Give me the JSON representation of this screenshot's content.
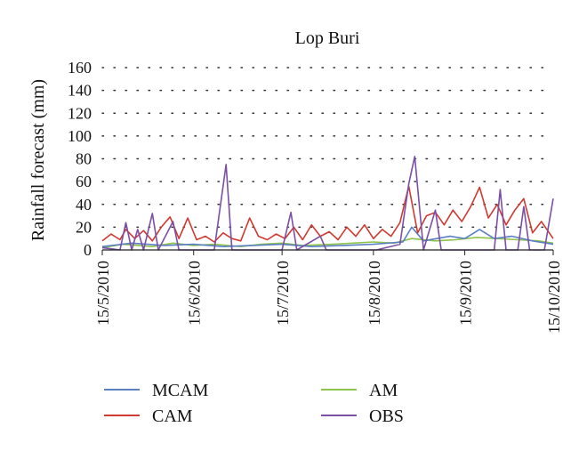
{
  "chart_data": {
    "type": "line",
    "title": "Lop Buri",
    "xlabel": "",
    "ylabel": "Rainfall forecast (mm)",
    "ylim": [
      0,
      160
    ],
    "yticks": [
      0,
      20,
      40,
      60,
      80,
      100,
      120,
      140,
      160
    ],
    "xlim": [
      "2010-05-15",
      "2010-10-15"
    ],
    "xtick_labels": [
      "15/5/2010",
      "15/6/2010",
      "15/7/2010",
      "15/8/2010",
      "15/9/2010",
      "15/10/2010"
    ],
    "xtick_dates": [
      "2010-05-15",
      "2010-06-15",
      "2010-07-15",
      "2010-08-15",
      "2010-09-15",
      "2010-10-15"
    ],
    "grid": "horizontal-dotted",
    "legend_position": "bottom",
    "series": [
      {
        "name": "MCAM",
        "color": "#5b7fc4",
        "points": [
          [
            "2010-05-15",
            3
          ],
          [
            "2010-05-25",
            6
          ],
          [
            "2010-06-05",
            4
          ],
          [
            "2010-06-15",
            5
          ],
          [
            "2010-06-25",
            3
          ],
          [
            "2010-07-05",
            4
          ],
          [
            "2010-07-15",
            5
          ],
          [
            "2010-07-25",
            3
          ],
          [
            "2010-08-05",
            4
          ],
          [
            "2010-08-15",
            5
          ],
          [
            "2010-08-25",
            7
          ],
          [
            "2010-08-28",
            20
          ],
          [
            "2010-09-01",
            8
          ],
          [
            "2010-09-10",
            12
          ],
          [
            "2010-09-15",
            10
          ],
          [
            "2010-09-20",
            18
          ],
          [
            "2010-09-25",
            10
          ],
          [
            "2010-10-01",
            12
          ],
          [
            "2010-10-08",
            8
          ],
          [
            "2010-10-15",
            5
          ]
        ]
      },
      {
        "name": "CAM",
        "color": "#d03a32",
        "points": [
          [
            "2010-05-15",
            8
          ],
          [
            "2010-05-18",
            14
          ],
          [
            "2010-05-21",
            9
          ],
          [
            "2010-05-23",
            18
          ],
          [
            "2010-05-26",
            10
          ],
          [
            "2010-05-29",
            17
          ],
          [
            "2010-06-01",
            8
          ],
          [
            "2010-06-04",
            20
          ],
          [
            "2010-06-07",
            29
          ],
          [
            "2010-06-10",
            10
          ],
          [
            "2010-06-13",
            28
          ],
          [
            "2010-06-16",
            9
          ],
          [
            "2010-06-19",
            12
          ],
          [
            "2010-06-22",
            7
          ],
          [
            "2010-06-25",
            15
          ],
          [
            "2010-06-28",
            10
          ],
          [
            "2010-07-01",
            8
          ],
          [
            "2010-07-04",
            28
          ],
          [
            "2010-07-07",
            12
          ],
          [
            "2010-07-10",
            9
          ],
          [
            "2010-07-13",
            14
          ],
          [
            "2010-07-16",
            10
          ],
          [
            "2010-07-19",
            20
          ],
          [
            "2010-07-22",
            9
          ],
          [
            "2010-07-25",
            22
          ],
          [
            "2010-07-28",
            12
          ],
          [
            "2010-07-31",
            16
          ],
          [
            "2010-08-03",
            9
          ],
          [
            "2010-08-06",
            20
          ],
          [
            "2010-08-09",
            12
          ],
          [
            "2010-08-12",
            22
          ],
          [
            "2010-08-15",
            10
          ],
          [
            "2010-08-18",
            18
          ],
          [
            "2010-08-21",
            12
          ],
          [
            "2010-08-24",
            24
          ],
          [
            "2010-08-27",
            56
          ],
          [
            "2010-08-30",
            15
          ],
          [
            "2010-09-02",
            30
          ],
          [
            "2010-09-05",
            33
          ],
          [
            "2010-09-08",
            22
          ],
          [
            "2010-09-11",
            35
          ],
          [
            "2010-09-14",
            25
          ],
          [
            "2010-09-17",
            38
          ],
          [
            "2010-09-20",
            55
          ],
          [
            "2010-09-23",
            28
          ],
          [
            "2010-09-26",
            40
          ],
          [
            "2010-09-29",
            22
          ],
          [
            "2010-10-02",
            35
          ],
          [
            "2010-10-05",
            45
          ],
          [
            "2010-10-08",
            15
          ],
          [
            "2010-10-11",
            25
          ],
          [
            "2010-10-15",
            10
          ]
        ]
      },
      {
        "name": "AM",
        "color": "#8fc44a",
        "points": [
          [
            "2010-05-15",
            2
          ],
          [
            "2010-05-22",
            5
          ],
          [
            "2010-06-01",
            3
          ],
          [
            "2010-06-08",
            6
          ],
          [
            "2010-06-15",
            4
          ],
          [
            "2010-06-22",
            5
          ],
          [
            "2010-07-01",
            3
          ],
          [
            "2010-07-08",
            5
          ],
          [
            "2010-07-15",
            6
          ],
          [
            "2010-07-22",
            4
          ],
          [
            "2010-08-01",
            5
          ],
          [
            "2010-08-08",
            6
          ],
          [
            "2010-08-15",
            7
          ],
          [
            "2010-08-22",
            6
          ],
          [
            "2010-08-28",
            10
          ],
          [
            "2010-09-05",
            8
          ],
          [
            "2010-09-12",
            9
          ],
          [
            "2010-09-19",
            11
          ],
          [
            "2010-09-26",
            10
          ],
          [
            "2010-10-03",
            9
          ],
          [
            "2010-10-10",
            8
          ],
          [
            "2010-10-15",
            6
          ]
        ]
      },
      {
        "name": "OBS",
        "color": "#7b4fa6",
        "points": [
          [
            "2010-05-15",
            2
          ],
          [
            "2010-05-21",
            0
          ],
          [
            "2010-05-23",
            24
          ],
          [
            "2010-05-25",
            0
          ],
          [
            "2010-05-27",
            18
          ],
          [
            "2010-05-29",
            0
          ],
          [
            "2010-06-01",
            32
          ],
          [
            "2010-06-03",
            0
          ],
          [
            "2010-06-08",
            25
          ],
          [
            "2010-06-10",
            0
          ],
          [
            "2010-06-14",
            0
          ],
          [
            "2010-06-22",
            0
          ],
          [
            "2010-06-26",
            75
          ],
          [
            "2010-06-28",
            0
          ],
          [
            "2010-07-15",
            0
          ],
          [
            "2010-07-18",
            33
          ],
          [
            "2010-07-20",
            0
          ],
          [
            "2010-07-28",
            12
          ],
          [
            "2010-07-30",
            0
          ],
          [
            "2010-08-16",
            0
          ],
          [
            "2010-08-24",
            5
          ],
          [
            "2010-08-27",
            58
          ],
          [
            "2010-08-29",
            82
          ],
          [
            "2010-09-01",
            0
          ],
          [
            "2010-09-05",
            35
          ],
          [
            "2010-09-07",
            0
          ],
          [
            "2010-09-18",
            0
          ],
          [
            "2010-09-25",
            0
          ],
          [
            "2010-09-27",
            53
          ],
          [
            "2010-09-29",
            0
          ],
          [
            "2010-10-03",
            0
          ],
          [
            "2010-10-05",
            38
          ],
          [
            "2010-10-07",
            0
          ],
          [
            "2010-10-12",
            0
          ],
          [
            "2010-10-15",
            45
          ]
        ]
      }
    ]
  }
}
